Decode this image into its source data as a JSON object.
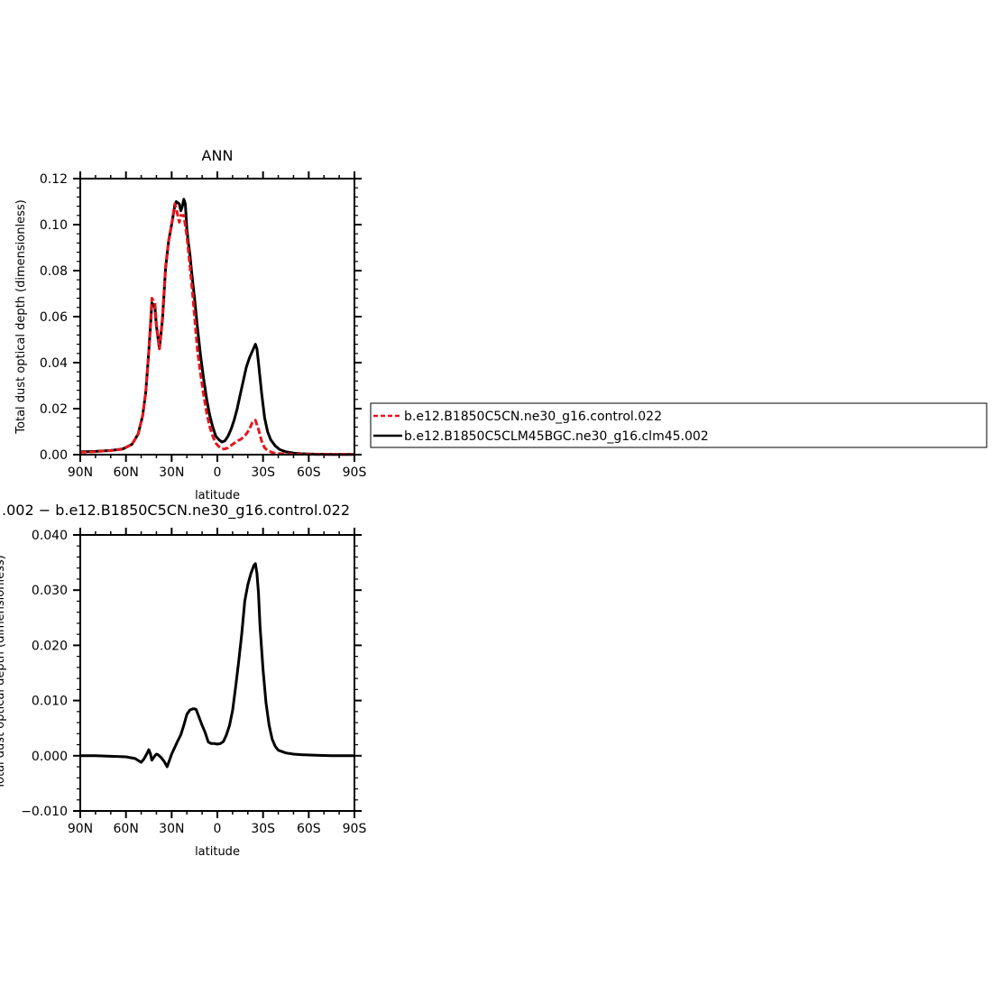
{
  "chart_data": [
    {
      "type": "line",
      "title": "ANN",
      "xlabel": "latitude",
      "ylabel": "Total dust optical depth (dimensionless)",
      "xlim": [
        90,
        -90
      ],
      "ylim": [
        0.0,
        0.12
      ],
      "xticks": [
        90,
        60,
        30,
        0,
        -30,
        -60,
        -90
      ],
      "xtick_labels": [
        "90N",
        "60N",
        "30N",
        "0",
        "30S",
        "60S",
        "90S"
      ],
      "yticks": [
        0.0,
        0.02,
        0.04,
        0.06,
        0.08,
        0.1,
        0.12
      ],
      "ytick_labels": [
        "0.00",
        "0.02",
        "0.04",
        "0.06",
        "0.08",
        "0.10",
        "0.12"
      ],
      "legend_position": "right",
      "series": [
        {
          "name": "b.e12.B1850C5CN.ne30_g16.control.022",
          "color": "#e8141c",
          "dash": "dashed",
          "x": [
            90,
            80,
            70,
            62,
            56,
            52,
            49,
            47,
            45,
            44,
            43,
            41,
            40,
            38,
            36,
            34,
            32,
            30,
            28,
            27,
            26,
            25,
            24,
            22,
            20,
            18,
            17,
            16,
            15,
            13,
            11,
            9,
            7,
            5,
            3,
            1,
            -1,
            -3,
            -5,
            -7,
            -9,
            -11,
            -13,
            -15,
            -17,
            -19,
            -21,
            -23,
            -25,
            -27,
            -29,
            -31,
            -33,
            -35,
            -38,
            -45,
            -55,
            -65,
            -75,
            -90
          ],
          "y": [
            0.001,
            0.0013,
            0.0018,
            0.0024,
            0.0045,
            0.009,
            0.017,
            0.027,
            0.045,
            0.056,
            0.068,
            0.066,
            0.057,
            0.046,
            0.06,
            0.082,
            0.093,
            0.1,
            0.109,
            0.107,
            0.104,
            0.101,
            0.104,
            0.104,
            0.095,
            0.082,
            0.075,
            0.068,
            0.06,
            0.045,
            0.035,
            0.026,
            0.018,
            0.012,
            0.008,
            0.005,
            0.0035,
            0.0025,
            0.0025,
            0.003,
            0.004,
            0.005,
            0.006,
            0.0065,
            0.0075,
            0.009,
            0.011,
            0.014,
            0.015,
            0.011,
            0.006,
            0.003,
            0.0018,
            0.0012,
            0.0006,
            0.0003,
            0.0002,
            0.0001,
            0.0001,
            0.0001
          ]
        },
        {
          "name": "b.e12.B1850C5CLM45BGC.ne30_g16.clm45.002",
          "color": "#000000",
          "dash": "solid",
          "x": [
            90,
            80,
            70,
            62,
            56,
            52,
            49,
            47,
            45,
            44,
            43,
            41,
            40,
            38,
            36,
            34,
            32,
            30,
            28,
            27,
            25,
            24,
            23,
            22,
            21,
            20,
            19,
            18,
            17,
            15,
            13,
            11,
            9,
            7,
            5,
            3,
            1,
            -1,
            -3,
            -5,
            -7,
            -9,
            -11,
            -13,
            -15,
            -17,
            -19,
            -21,
            -23,
            -25,
            -26,
            -27,
            -29,
            -31,
            -33,
            -35,
            -38,
            -41,
            -45,
            -50,
            -55,
            -65,
            -75,
            -90
          ],
          "y": [
            0.0012,
            0.0014,
            0.0018,
            0.0025,
            0.0045,
            0.009,
            0.017,
            0.027,
            0.045,
            0.055,
            0.066,
            0.064,
            0.056,
            0.046,
            0.059,
            0.081,
            0.093,
            0.1,
            0.108,
            0.11,
            0.109,
            0.106,
            0.108,
            0.111,
            0.109,
            0.098,
            0.092,
            0.087,
            0.08,
            0.068,
            0.055,
            0.043,
            0.033,
            0.024,
            0.017,
            0.012,
            0.008,
            0.0065,
            0.0055,
            0.006,
            0.008,
            0.011,
            0.015,
            0.02,
            0.026,
            0.032,
            0.038,
            0.042,
            0.045,
            0.048,
            0.046,
            0.04,
            0.027,
            0.016,
            0.01,
            0.0065,
            0.0038,
            0.0022,
            0.0012,
            0.0007,
            0.0004,
            0.0002,
            0.0001,
            0.0001
          ]
        }
      ]
    },
    {
      "type": "line",
      "title": ".002 − b.e12.B1850C5CN.ne30_g16.control.022",
      "xlabel": "latitude",
      "ylabel": "Total dust optical depth (dimensionless)",
      "xlim": [
        90,
        -90
      ],
      "ylim": [
        -0.01,
        0.04
      ],
      "xticks": [
        90,
        60,
        30,
        0,
        -30,
        -60,
        -90
      ],
      "xtick_labels": [
        "90N",
        "60N",
        "30N",
        "0",
        "30S",
        "60S",
        "90S"
      ],
      "yticks": [
        -0.01,
        0.0,
        0.01,
        0.02,
        0.03,
        0.04
      ],
      "ytick_labels": [
        "−0.010",
        "0.000",
        "0.010",
        "0.020",
        "0.030",
        "0.040"
      ],
      "series": [
        {
          "color": "#000000",
          "dash": "solid",
          "x": [
            90,
            80,
            70,
            60,
            54,
            50,
            48,
            46,
            45,
            44,
            43,
            42,
            41,
            40,
            39,
            37,
            35,
            33,
            31,
            30,
            28,
            26,
            24,
            22,
            20,
            18,
            16,
            15,
            14,
            12,
            10,
            8,
            6,
            4,
            2,
            0,
            -2,
            -4,
            -6,
            -8,
            -10,
            -12,
            -14,
            -16,
            -18,
            -20,
            -22,
            -24,
            -25,
            -26,
            -27,
            -28,
            -30,
            -32,
            -34,
            -36,
            -38,
            -40,
            -45,
            -50,
            -55,
            -65,
            -75,
            -90
          ],
          "y": [
            0.0,
            0.0,
            -0.0001,
            -0.0002,
            -0.0005,
            -0.0012,
            -0.0005,
            0.0005,
            0.0011,
            0.0004,
            -0.0008,
            -0.0004,
            0.0,
            0.0003,
            0.0002,
            -0.0003,
            -0.001,
            -0.002,
            -0.0005,
            0.0003,
            0.0015,
            0.0027,
            0.0038,
            0.0055,
            0.0075,
            0.0083,
            0.0085,
            0.0085,
            0.0084,
            0.007,
            0.0055,
            0.0042,
            0.0025,
            0.0022,
            0.0022,
            0.0021,
            0.0022,
            0.0026,
            0.0038,
            0.0055,
            0.0082,
            0.0125,
            0.017,
            0.022,
            0.028,
            0.031,
            0.033,
            0.0345,
            0.0348,
            0.033,
            0.0295,
            0.0235,
            0.0155,
            0.0095,
            0.0055,
            0.003,
            0.0017,
            0.001,
            0.0005,
            0.0003,
            0.0002,
            0.0001,
            0.0,
            0.0
          ]
        }
      ]
    }
  ]
}
